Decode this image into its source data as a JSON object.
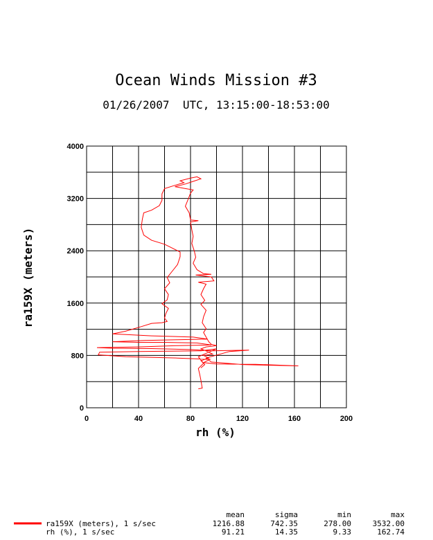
{
  "chart_data": {
    "type": "line",
    "title": "Ocean Winds Mission #3",
    "subtitle": "01/26/2007  UTC, 13:15:00-18:53:00",
    "xlabel": "rh (%)",
    "ylabel": "ra159X (meters)",
    "xlim": [
      0,
      200
    ],
    "ylim": [
      0,
      4000
    ],
    "x_ticks": [
      "0",
      "40",
      "80",
      "120",
      "160",
      "200"
    ],
    "y_ticks": [
      "0",
      "800",
      "1600",
      "2400",
      "3200",
      "4000"
    ],
    "grid": true,
    "series_color": "#ff0000",
    "series": [
      {
        "name": "ra159X (meters), 1 s/sec",
        "points": [
          [
            86,
            290
          ],
          [
            89,
            300
          ],
          [
            88,
            420
          ],
          [
            87,
            520
          ],
          [
            86,
            600
          ],
          [
            90,
            680
          ],
          [
            86,
            780
          ],
          [
            94,
            850
          ],
          [
            100,
            900
          ],
          [
            88,
            870
          ],
          [
            40,
            860
          ],
          [
            10,
            850
          ],
          [
            9,
            810
          ],
          [
            30,
            780
          ],
          [
            70,
            760
          ],
          [
            95,
            740
          ],
          [
            90,
            690
          ],
          [
            100,
            670
          ],
          [
            130,
            665
          ],
          [
            163,
            640
          ],
          [
            120,
            660
          ],
          [
            96,
            700
          ],
          [
            92,
            760
          ],
          [
            110,
            860
          ],
          [
            125,
            880
          ],
          [
            96,
            870
          ],
          [
            80,
            890
          ],
          [
            50,
            905
          ],
          [
            20,
            910
          ],
          [
            8,
            920
          ],
          [
            40,
            930
          ],
          [
            70,
            950
          ],
          [
            96,
            960
          ],
          [
            85,
            990
          ],
          [
            60,
            1000
          ],
          [
            40,
            1000
          ],
          [
            20,
            1010
          ],
          [
            45,
            1030
          ],
          [
            70,
            1040
          ],
          [
            93,
            1050
          ],
          [
            82,
            1080
          ],
          [
            50,
            1100
          ],
          [
            20,
            1130
          ],
          [
            30,
            1170
          ],
          [
            42,
            1240
          ],
          [
            50,
            1290
          ],
          [
            58,
            1300
          ],
          [
            62,
            1320
          ],
          [
            60,
            1370
          ],
          [
            61,
            1440
          ],
          [
            63,
            1520
          ],
          [
            58,
            1590
          ],
          [
            62,
            1650
          ],
          [
            63,
            1730
          ],
          [
            60,
            1820
          ],
          [
            64,
            1910
          ],
          [
            62,
            1990
          ],
          [
            66,
            2090
          ],
          [
            70,
            2190
          ],
          [
            72,
            2310
          ],
          [
            72,
            2380
          ],
          [
            66,
            2440
          ],
          [
            60,
            2500
          ],
          [
            50,
            2560
          ],
          [
            44,
            2640
          ],
          [
            42,
            2760
          ],
          [
            43,
            2890
          ],
          [
            44,
            2980
          ],
          [
            50,
            3020
          ],
          [
            56,
            3090
          ],
          [
            58,
            3170
          ],
          [
            58,
            3270
          ],
          [
            60,
            3350
          ],
          [
            68,
            3400
          ],
          [
            75,
            3440
          ],
          [
            72,
            3470
          ],
          [
            80,
            3510
          ],
          [
            85,
            3530
          ],
          [
            88,
            3500
          ],
          [
            82,
            3460
          ],
          [
            76,
            3420
          ],
          [
            68,
            3380
          ],
          [
            76,
            3350
          ],
          [
            82,
            3330
          ],
          [
            80,
            3280
          ],
          [
            78,
            3180
          ],
          [
            76,
            3080
          ],
          [
            79,
            2980
          ],
          [
            80,
            2870
          ],
          [
            86,
            2860
          ],
          [
            80,
            2840
          ],
          [
            81,
            2720
          ],
          [
            82,
            2620
          ],
          [
            81,
            2510
          ],
          [
            83,
            2390
          ],
          [
            84,
            2300
          ],
          [
            82,
            2210
          ],
          [
            85,
            2110
          ],
          [
            90,
            2050
          ],
          [
            96,
            2040
          ],
          [
            84,
            2030
          ],
          [
            96,
            2000
          ],
          [
            98,
            1940
          ],
          [
            86,
            1920
          ],
          [
            92,
            1890
          ],
          [
            90,
            1820
          ],
          [
            88,
            1730
          ],
          [
            91,
            1640
          ],
          [
            88,
            1580
          ],
          [
            92,
            1490
          ],
          [
            90,
            1390
          ],
          [
            89,
            1300
          ],
          [
            92,
            1210
          ],
          [
            90,
            1150
          ],
          [
            92,
            1080
          ],
          [
            94,
            1010
          ],
          [
            96,
            970
          ],
          [
            100,
            950
          ],
          [
            92,
            930
          ],
          [
            88,
            900
          ],
          [
            93,
            860
          ],
          [
            97,
            820
          ],
          [
            90,
            800
          ],
          [
            94,
            760
          ],
          [
            88,
            720
          ],
          [
            91,
            660
          ],
          [
            88,
            610
          ]
        ]
      },
      {
        "name": "rh (%), 1 s/sec"
      }
    ],
    "stats": {
      "headers": [
        "mean",
        "sigma",
        "min",
        "max"
      ],
      "rows": [
        {
          "label": "ra159X (meters), 1 s/sec",
          "values": [
            "1216.88",
            "742.35",
            "278.00",
            "3532.00"
          ]
        },
        {
          "label": "rh (%), 1 s/sec",
          "values": [
            "91.21",
            "14.35",
            "9.33",
            "162.74"
          ]
        }
      ]
    }
  }
}
